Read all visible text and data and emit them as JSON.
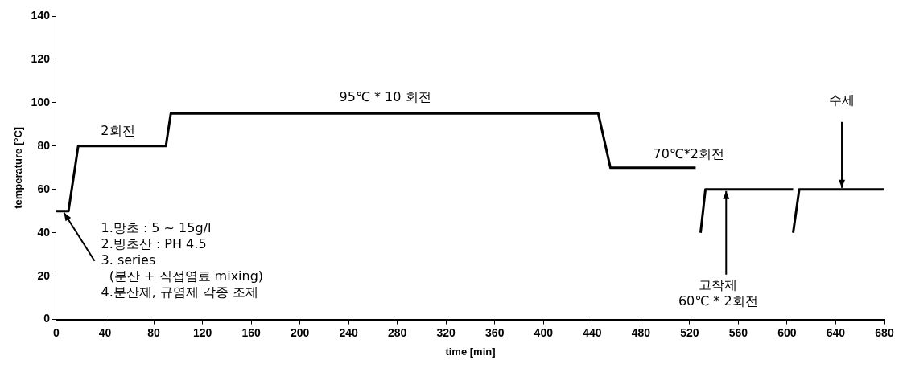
{
  "chart_data": {
    "type": "line",
    "xlabel": "time [min]",
    "ylabel": "temperature [°C]",
    "series": [
      {
        "color": "#000000",
        "x": [
          0,
          10,
          18,
          90,
          94,
          445,
          455,
          525
        ],
        "values": [
          50,
          50,
          80,
          80,
          95,
          95,
          70,
          70
        ]
      },
      {
        "color": "#000000",
        "x": [
          529,
          533,
          605
        ],
        "values": [
          40,
          60,
          60
        ]
      },
      {
        "color": "#000000",
        "x": [
          605,
          610,
          680
        ],
        "values": [
          40,
          60,
          60
        ]
      }
    ],
    "xlim": [
      0,
      680
    ],
    "xticks": [
      0,
      40,
      80,
      120,
      160,
      200,
      240,
      280,
      320,
      360,
      400,
      440,
      480,
      520,
      560,
      600,
      640,
      680
    ],
    "ylim": [
      0,
      140
    ],
    "yticks": [
      0,
      20,
      40,
      60,
      80,
      100,
      120,
      140
    ],
    "grid": false,
    "legend": false,
    "marker": "none",
    "line_style": "solid",
    "annotations": [
      {
        "text": "2회전",
        "x": 30,
        "y": 80
      },
      {
        "text": "95℃ * 10 회전",
        "x": 270,
        "y": 95
      },
      {
        "text": "70℃*2회전",
        "x": 490,
        "y": 70
      },
      {
        "text": "1.망초 : 5 ~ 15g/l\n2.빙초산 : PH 4.5\n3. series\n  (분산 + 직접염료 mixing)\n4.분산제, 규염제 각종 조제",
        "x": 5,
        "y": 50
      },
      {
        "text": "고착제\n60℃ * 2회전",
        "x": 550,
        "y": 60
      },
      {
        "text": "수세",
        "x": 645,
        "y": 60
      }
    ]
  }
}
